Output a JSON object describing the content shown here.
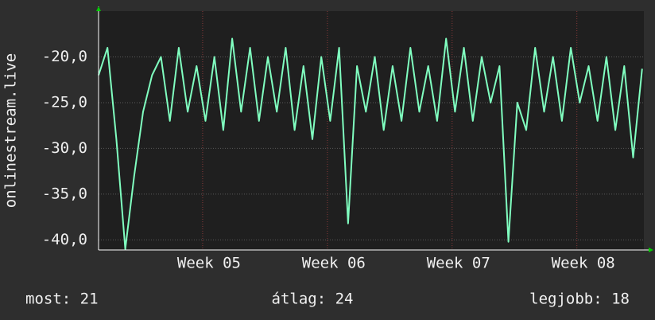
{
  "chart_data": {
    "type": "line",
    "ylabel": "onlinestream.live",
    "x": [
      0,
      0.5,
      1,
      1.5,
      2,
      2.5,
      3,
      3.5,
      4,
      4.5,
      5,
      5.5,
      6,
      6.5,
      7,
      7.5,
      8,
      8.5,
      9,
      9.5,
      10,
      10.5,
      11,
      11.5,
      12,
      12.5,
      13,
      13.5,
      14,
      14.5,
      15,
      15.5,
      16,
      16.5,
      17,
      17.5,
      18,
      18.5,
      19,
      19.5,
      20,
      20.5,
      21,
      21.5,
      22,
      22.5,
      23,
      23.5,
      24,
      24.5,
      25,
      25.5,
      26,
      26.5,
      27,
      27.5,
      28,
      28.5,
      29,
      29.5,
      30,
      30.5
    ],
    "series": [
      {
        "name": "onlinestream.live",
        "color": "#80ffc0",
        "values": [
          -22,
          -19,
          -29,
          -41,
          -33,
          -26,
          -22,
          -20,
          -27,
          -19,
          -26,
          -21,
          -27,
          -20,
          -28,
          -18,
          -26,
          -19,
          -27,
          -20,
          -26,
          -19,
          -28,
          -21,
          -29,
          -20,
          -27,
          -19,
          -38.2,
          -21,
          -26,
          -20,
          -28,
          -21,
          -27,
          -19,
          -26,
          -21,
          -27,
          -18,
          -26,
          -19,
          -27,
          -20,
          -25,
          -21,
          -40.2,
          -25,
          -28,
          -19,
          -26,
          -20,
          -27,
          -19,
          -25,
          -21,
          -27,
          -20,
          -28,
          -21,
          -31,
          -21.3
        ]
      }
    ],
    "xlim": [
      0,
      30.6
    ],
    "xticks": [
      {
        "value": 5.84,
        "label": "Week 05"
      },
      {
        "value": 12.84,
        "label": "Week 06"
      },
      {
        "value": 19.84,
        "label": "Week 07"
      },
      {
        "value": 26.84,
        "label": "Week 08"
      }
    ],
    "ylim": [
      -41.1,
      -15
    ],
    "yticks": [
      {
        "value": -20,
        "label": "-20,0"
      },
      {
        "value": -25,
        "label": "-25,0"
      },
      {
        "value": -30,
        "label": "-30,0"
      },
      {
        "value": -35,
        "label": "-35,0"
      },
      {
        "value": -40,
        "label": "-40,0"
      }
    ],
    "grid": true,
    "footer": [
      "most: 21",
      "átlag: 24",
      "legjobb: 18"
    ]
  }
}
